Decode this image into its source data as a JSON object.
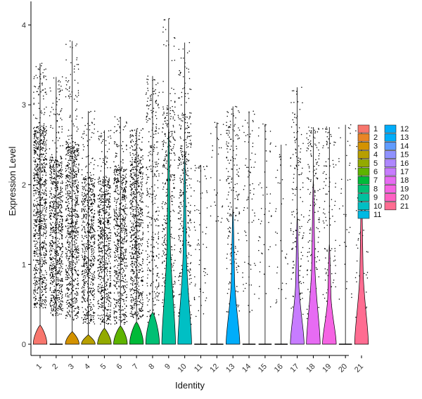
{
  "chart_data": {
    "type": "violin",
    "xlabel": "Identity",
    "ylabel": "Expression Level",
    "ylim": [
      -0.2,
      4.15
    ],
    "yticks": [
      0,
      1,
      2,
      3,
      4
    ],
    "grid": false,
    "legend_position": "right",
    "legend_columns": 2,
    "categories": [
      "1",
      "2",
      "3",
      "4",
      "5",
      "6",
      "7",
      "8",
      "9",
      "10",
      "11",
      "12",
      "13",
      "14",
      "15",
      "16",
      "17",
      "18",
      "19",
      "20",
      "21"
    ],
    "colors": [
      "#F8766D",
      "#E88526",
      "#D39200",
      "#B79F00",
      "#93AA00",
      "#5EB300",
      "#00BA38",
      "#00BF74",
      "#00C19F",
      "#00BFC4",
      "#00B9E3",
      "#00ADFA",
      "#619CFF",
      "#AE87FF",
      "#DB72FB",
      "#F564E3",
      "#FF61C3",
      "#FF6C91",
      "#F8766D",
      "#E7851E",
      "#FF6C91"
    ],
    "series": [
      {
        "name": "1",
        "color": "#F8766D",
        "max": 3.52,
        "density": 1.0,
        "violin_height": 0.24,
        "violin_width": 0.45,
        "point_count": 900,
        "level_min": 0.45,
        "level_max": 2.75
      },
      {
        "name": "2",
        "color": "#E88526",
        "max": 3.35,
        "density": 0.9,
        "violin_height": 0.0,
        "violin_width": 0.0,
        "point_count": 800,
        "level_min": 0.35,
        "level_max": 2.35
      },
      {
        "name": "3",
        "color": "#D39200",
        "max": 3.8,
        "density": 0.85,
        "violin_height": 0.16,
        "violin_width": 0.4,
        "point_count": 800,
        "level_min": 0.3,
        "level_max": 2.55
      },
      {
        "name": "4",
        "color": "#B79F00",
        "max": 2.92,
        "density": 0.7,
        "violin_height": 0.12,
        "violin_width": 0.4,
        "point_count": 650,
        "level_min": 0.25,
        "level_max": 2.1
      },
      {
        "name": "5",
        "color": "#93AA00",
        "max": 2.68,
        "density": 0.7,
        "violin_height": 0.2,
        "violin_width": 0.45,
        "point_count": 650,
        "level_min": 0.25,
        "level_max": 2.1
      },
      {
        "name": "6",
        "color": "#5EB300",
        "max": 2.85,
        "density": 0.7,
        "violin_height": 0.23,
        "violin_width": 0.45,
        "point_count": 650,
        "level_min": 0.25,
        "level_max": 2.2
      },
      {
        "name": "7",
        "color": "#00BA38",
        "max": 2.7,
        "density": 0.75,
        "violin_height": 0.28,
        "violin_width": 0.45,
        "point_count": 700,
        "level_min": 0.3,
        "level_max": 2.4
      },
      {
        "name": "8",
        "color": "#00BF74",
        "max": 3.36,
        "density": 0.5,
        "violin_height": 0.4,
        "violin_width": 0.45,
        "point_count": 320,
        "level_min": 0.2,
        "level_max": 3.1
      },
      {
        "name": "9",
        "color": "#00C19F",
        "max": 4.08,
        "density": 0.6,
        "violin_height": 2.7,
        "violin_width": 0.45,
        "point_count": 380,
        "level_min": 0.2,
        "level_max": 3.0
      },
      {
        "name": "10",
        "color": "#00BFC4",
        "max": 3.78,
        "density": 0.6,
        "violin_height": 2.4,
        "violin_width": 0.45,
        "point_count": 380,
        "level_min": 0.2,
        "level_max": 2.9
      },
      {
        "name": "11",
        "color": "#00B9E3",
        "max": 2.24,
        "density": 0.1,
        "violin_height": 0.0,
        "violin_width": 0.0,
        "point_count": 70,
        "level_min": 0.3,
        "level_max": 2.2
      },
      {
        "name": "12",
        "color": "#00ADFA",
        "max": 2.78,
        "density": 0.05,
        "violin_height": 0.0,
        "violin_width": 0.0,
        "point_count": 30,
        "level_min": 1.5,
        "level_max": 2.75
      },
      {
        "name": "13",
        "color": "#00ADFA",
        "max": 2.98,
        "density": 0.35,
        "violin_height": 1.7,
        "violin_width": 0.45,
        "point_count": 200,
        "level_min": 0.4,
        "level_max": 2.8
      },
      {
        "name": "14",
        "color": "#619CFF",
        "max": 2.92,
        "density": 0.15,
        "violin_height": 0.0,
        "violin_width": 0.0,
        "point_count": 80,
        "level_min": 0.4,
        "level_max": 2.8
      },
      {
        "name": "15",
        "color": "#8F91FF",
        "max": 2.76,
        "density": 0.1,
        "violin_height": 0.0,
        "violin_width": 0.0,
        "point_count": 50,
        "level_min": 0.4,
        "level_max": 2.7
      },
      {
        "name": "16",
        "color": "#AE87FF",
        "max": 2.5,
        "density": 0.05,
        "violin_height": 0.0,
        "violin_width": 0.0,
        "point_count": 35,
        "level_min": 0.4,
        "level_max": 2.45
      },
      {
        "name": "17",
        "color": "#C77CFF",
        "max": 3.22,
        "density": 0.35,
        "violin_height": 1.6,
        "violin_width": 0.45,
        "point_count": 160,
        "level_min": 0.3,
        "level_max": 2.9
      },
      {
        "name": "18",
        "color": "#E76BF3",
        "max": 2.72,
        "density": 0.35,
        "violin_height": 2.05,
        "violin_width": 0.45,
        "point_count": 170,
        "level_min": 0.3,
        "level_max": 2.6
      },
      {
        "name": "19",
        "color": "#F564E3",
        "max": 2.72,
        "density": 0.25,
        "violin_height": 1.25,
        "violin_width": 0.45,
        "point_count": 110,
        "level_min": 0.3,
        "level_max": 2.6
      },
      {
        "name": "20",
        "color": "#FF61C3",
        "max": 2.75,
        "density": 0.05,
        "violin_height": 0.0,
        "violin_width": 0.0,
        "point_count": 35,
        "level_min": 0.4,
        "level_max": 2.7
      },
      {
        "name": "21",
        "color": "#FF6C91",
        "max": 2.7,
        "density": 0.2,
        "violin_height": 1.93,
        "violin_width": 0.45,
        "point_count": 60,
        "level_min": 0.3,
        "level_max": 2.6
      }
    ]
  }
}
